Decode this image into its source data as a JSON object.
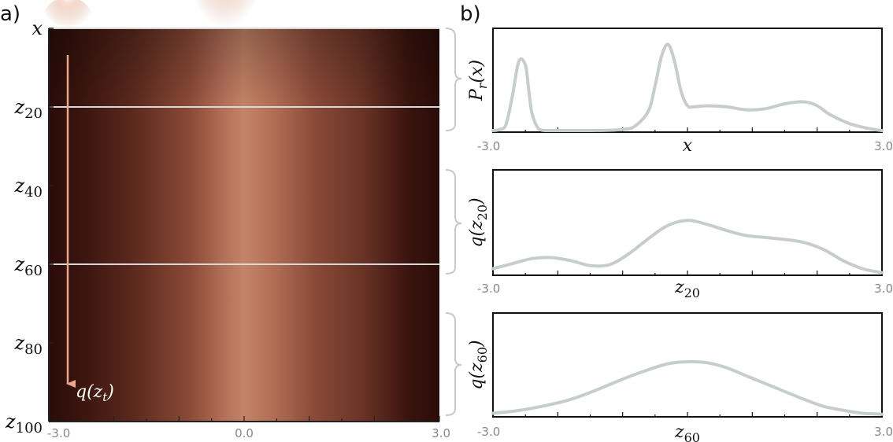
{
  "panels": {
    "a": "a)",
    "b": "b)"
  },
  "heatmap": {
    "row_labels": [
      {
        "base": "x",
        "sub": "",
        "t": 0
      },
      {
        "base": "z",
        "sub": "20",
        "t": 20
      },
      {
        "base": "z",
        "sub": "40",
        "t": 40
      },
      {
        "base": "z",
        "sub": "60",
        "t": 60
      },
      {
        "base": "z",
        "sub": "80",
        "t": 80
      },
      {
        "base": "z",
        "sub": "100",
        "t": 100
      }
    ],
    "xticks": [
      "-3.0",
      "0.0",
      "3.0"
    ],
    "arrow_label": {
      "func": "q(",
      "base": "z",
      "sub": "t",
      "close": ")"
    },
    "highlight_rows": [
      20,
      60
    ],
    "colors": {
      "dark": "#2a0c08",
      "light": "#c98a70",
      "arrow": "#e8a68c",
      "highlight": "#d8d8d8"
    }
  },
  "chart_data": [
    {
      "type": "heatmap",
      "x": {
        "range": [
          -3.0,
          3.0
        ]
      },
      "y": {
        "range": [
          0,
          100
        ],
        "label_values": [
          0,
          20,
          40,
          60,
          80,
          100
        ]
      },
      "description_values": {
        "peaks_at_t0": [
          -2.45,
          -0.3
        ],
        "broad_center_at_t100": 0.0
      }
    },
    {
      "type": "line",
      "ylabel": {
        "func": "P",
        "sub": "r",
        "arg": "(x)"
      },
      "xlabel": {
        "base": "x",
        "sub": ""
      },
      "xlim": [
        -3.0,
        3.0
      ],
      "ylim": [
        0,
        1
      ],
      "xticks": [
        "-3.0",
        "3.0"
      ],
      "x": [
        -3.0,
        -2.9,
        -2.8,
        -2.7,
        -2.6,
        -2.5,
        -2.45,
        -2.4,
        -2.3,
        -2.2,
        -2.1,
        -1.5,
        -1.0,
        -0.8,
        -0.6,
        -0.5,
        -0.4,
        -0.3,
        -0.2,
        -0.1,
        0.0,
        0.1,
        0.3,
        0.6,
        0.9,
        1.2,
        1.5,
        1.8,
        2.0,
        2.2,
        2.5,
        2.8,
        3.0
      ],
      "values": [
        0.0,
        0.01,
        0.06,
        0.35,
        0.7,
        0.66,
        0.42,
        0.18,
        0.02,
        0.0,
        0.0,
        0.0,
        0.01,
        0.05,
        0.2,
        0.45,
        0.75,
        0.87,
        0.7,
        0.4,
        0.25,
        0.24,
        0.25,
        0.24,
        0.21,
        0.22,
        0.27,
        0.29,
        0.25,
        0.16,
        0.07,
        0.02,
        0.0
      ],
      "color": "#c7cdcd"
    },
    {
      "type": "line",
      "ylabel": {
        "func": "q",
        "sub": "20"
      },
      "xlabel": {
        "base": "z",
        "sub": "20"
      },
      "xlim": [
        -3.0,
        3.0
      ],
      "ylim": [
        0,
        1
      ],
      "xticks": [
        "-3.0",
        "3.0"
      ],
      "x": [
        -3.0,
        -2.7,
        -2.4,
        -2.1,
        -1.8,
        -1.5,
        -1.2,
        -0.9,
        -0.6,
        -0.3,
        0.0,
        0.3,
        0.6,
        0.9,
        1.2,
        1.5,
        1.8,
        2.1,
        2.4,
        2.7,
        3.0
      ],
      "values": [
        0.05,
        0.1,
        0.15,
        0.16,
        0.13,
        0.08,
        0.09,
        0.2,
        0.35,
        0.48,
        0.53,
        0.49,
        0.43,
        0.38,
        0.36,
        0.34,
        0.31,
        0.24,
        0.13,
        0.05,
        0.01
      ],
      "color": "#c7cdcd"
    },
    {
      "type": "line",
      "ylabel": {
        "func": "q",
        "sub": "60"
      },
      "xlabel": {
        "base": "z",
        "sub": "60"
      },
      "xlim": [
        -3.0,
        3.0
      ],
      "ylim": [
        0,
        1
      ],
      "xticks": [
        "-3.0",
        "3.0"
      ],
      "x": [
        -3.0,
        -2.7,
        -2.4,
        -2.1,
        -1.8,
        -1.5,
        -1.2,
        -0.9,
        -0.6,
        -0.3,
        0.0,
        0.3,
        0.6,
        0.9,
        1.2,
        1.5,
        1.8,
        2.1,
        2.4,
        2.7,
        3.0
      ],
      "values": [
        0.02,
        0.04,
        0.07,
        0.11,
        0.16,
        0.23,
        0.31,
        0.39,
        0.46,
        0.52,
        0.54,
        0.53,
        0.48,
        0.4,
        0.32,
        0.24,
        0.16,
        0.09,
        0.05,
        0.02,
        0.01
      ],
      "color": "#c7cdcd"
    }
  ]
}
